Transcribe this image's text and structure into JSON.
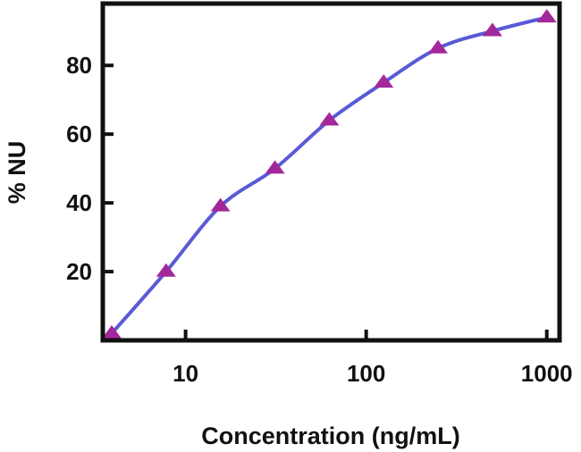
{
  "chart_data": {
    "type": "line",
    "xlabel": "Concentration (ng/mL)",
    "ylabel": "% NU",
    "x_scale": "log",
    "xlim": [
      3.9,
      1050
    ],
    "ylim": [
      0,
      98
    ],
    "x_ticks": [
      {
        "value": 10,
        "label": "10"
      },
      {
        "value": 100,
        "label": "100"
      },
      {
        "value": 1000,
        "label": "1000"
      }
    ],
    "y_ticks": [
      {
        "value": 20,
        "label": "20"
      },
      {
        "value": 40,
        "label": "40"
      },
      {
        "value": 60,
        "label": "60"
      },
      {
        "value": 80,
        "label": "80"
      }
    ],
    "grid": false,
    "legend": "none",
    "series": [
      {
        "line_color": "#5a5ad6",
        "marker": "triangle",
        "marker_color": "#a2289a",
        "x": [
          3.9,
          7.8,
          15.6,
          31.25,
          62.5,
          125,
          250,
          500,
          1000
        ],
        "y": [
          2,
          20,
          39,
          50,
          64,
          75,
          85,
          90,
          94
        ]
      }
    ]
  }
}
